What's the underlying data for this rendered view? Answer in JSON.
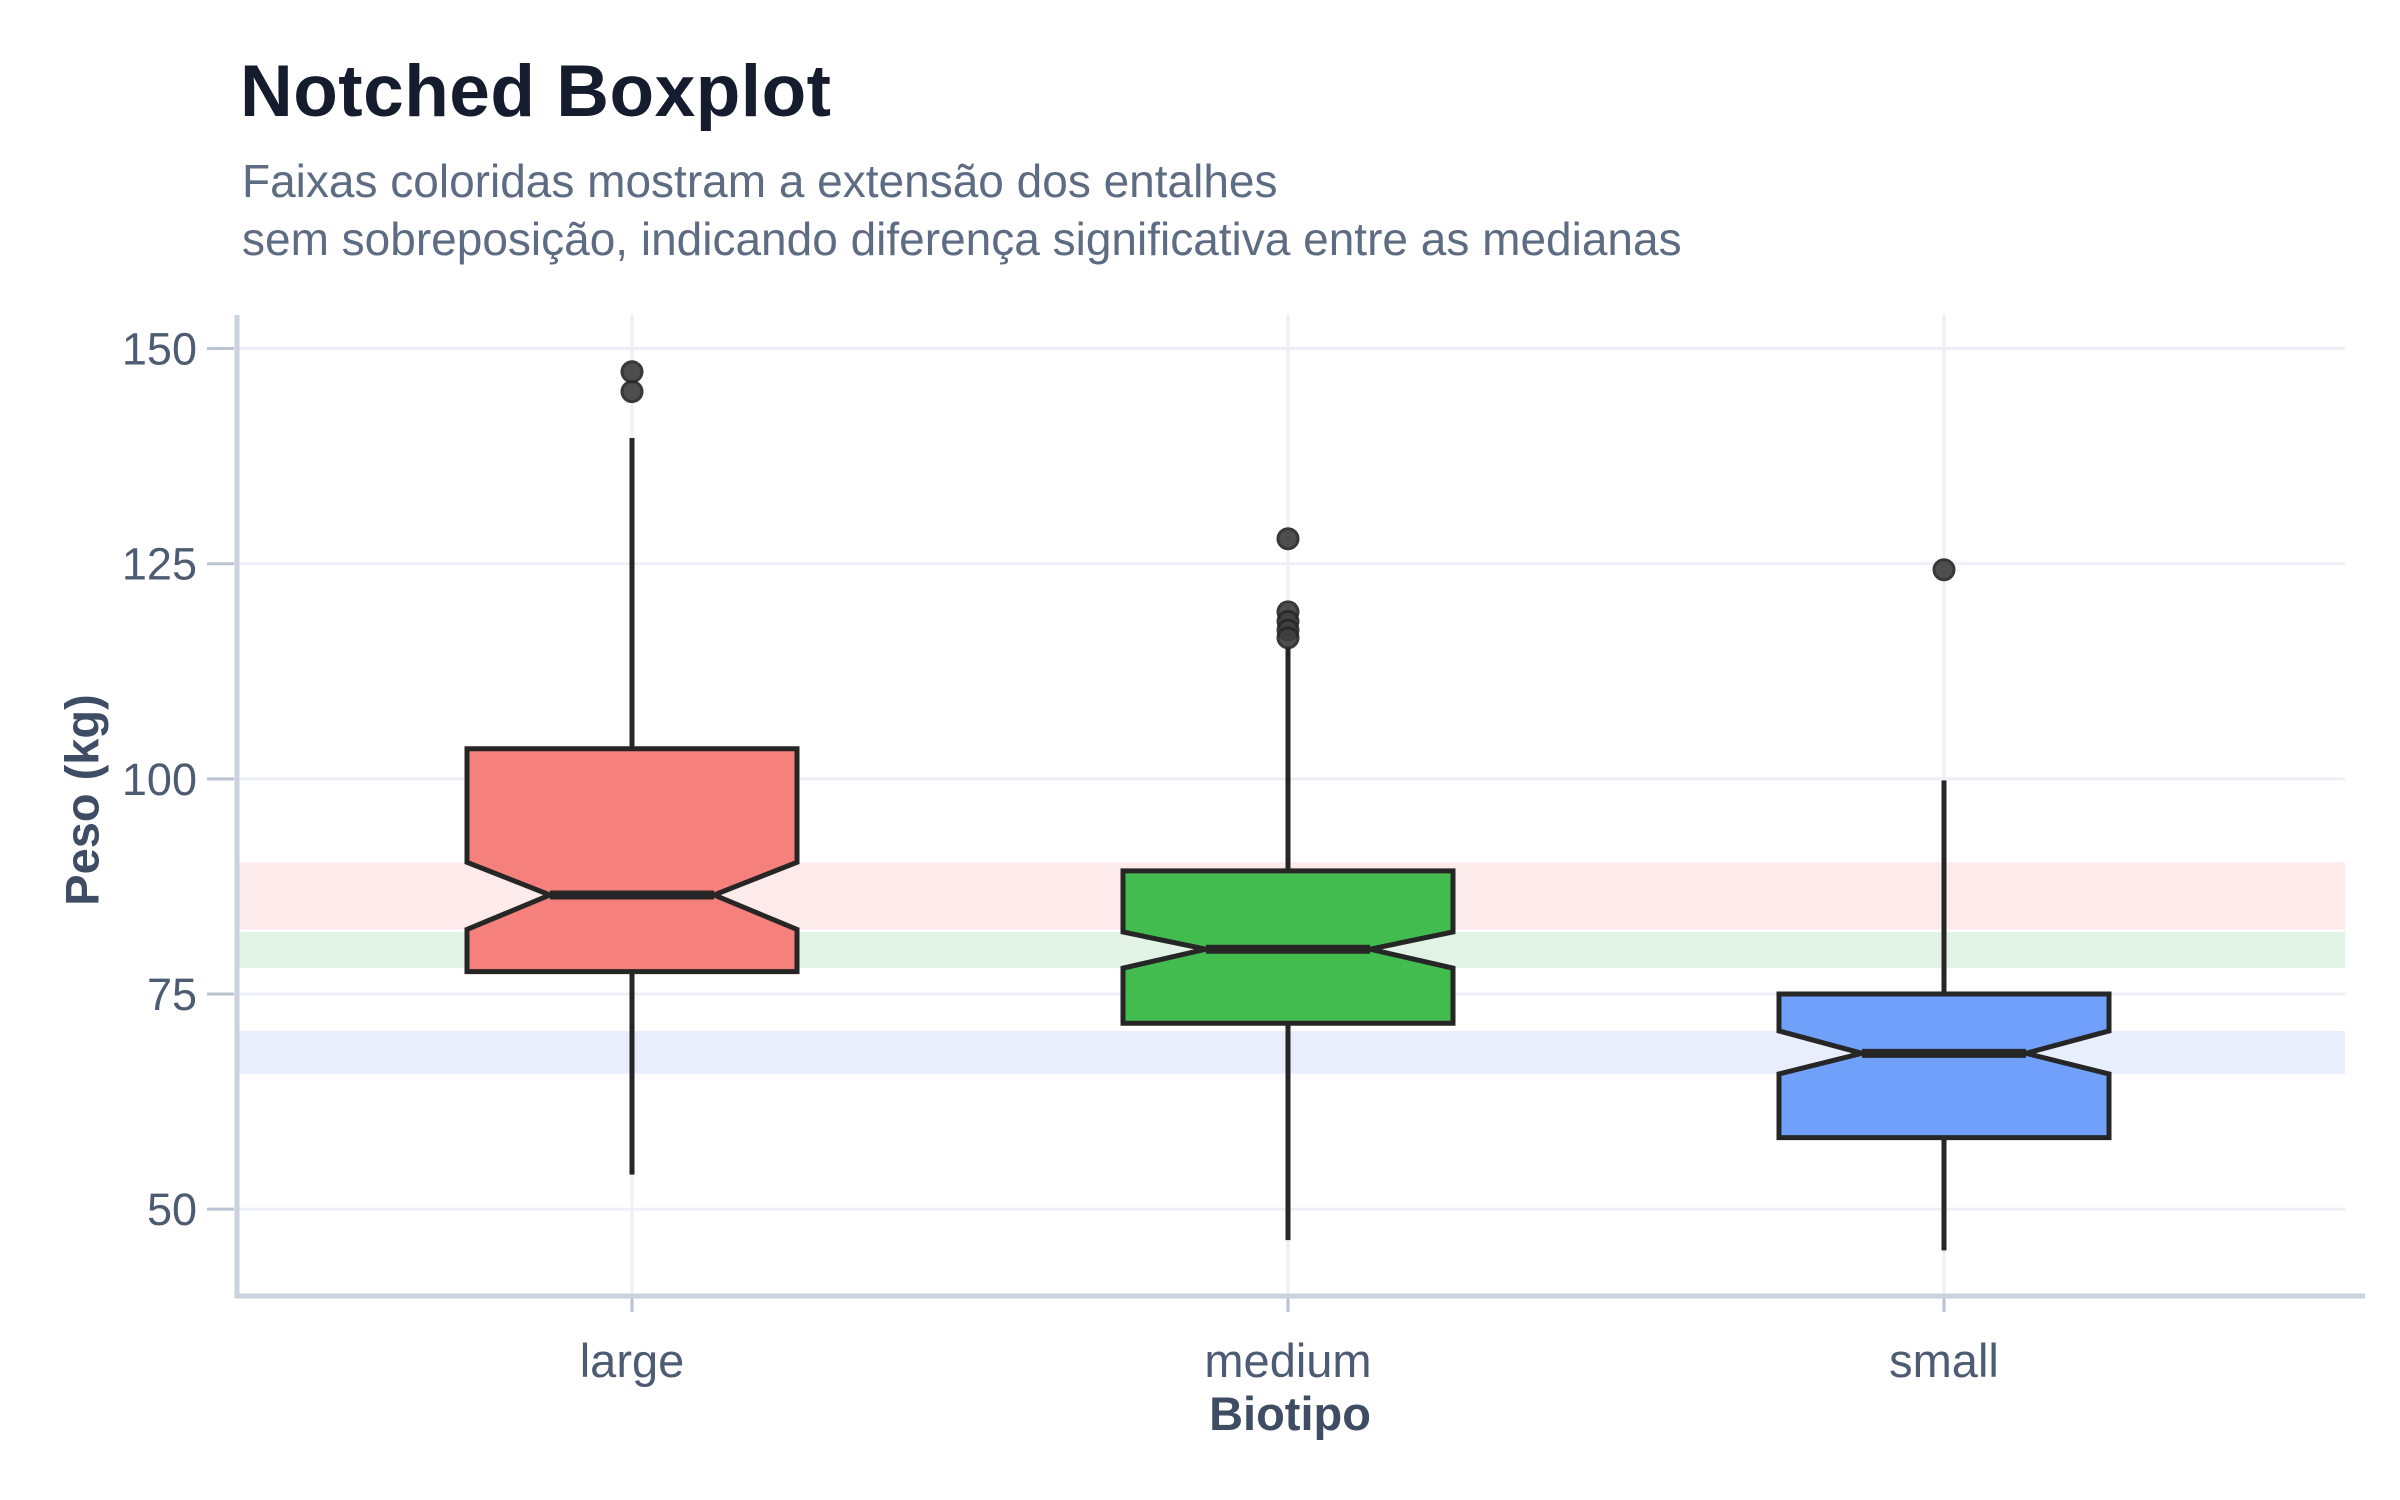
{
  "chart_data": {
    "type": "boxplot",
    "notched": true,
    "title": "Notched Boxplot",
    "subtitle_lines": [
      "Faixas coloridas mostram a extensão dos entalhes",
      "sem sobreposição, indicando diferença significativa entre as medianas"
    ],
    "xlabel": "Biotipo",
    "ylabel": "Peso (kg)",
    "categories": [
      "large",
      "medium",
      "small"
    ],
    "y_ticks": [
      50,
      75,
      100,
      125,
      150
    ],
    "ylim": [
      39.9,
      153.9
    ],
    "legend": "none",
    "grid": "horizontal-and-category-vertical",
    "series": [
      {
        "category": "large",
        "color": "#f5807c",
        "q1": 77.6,
        "median": 86.5,
        "q3": 103.5,
        "notch_low": 82.5,
        "notch_high": 90.3,
        "whisker_low": 54.0,
        "whisker_high": 139.6,
        "outliers": [
          145.0,
          147.3
        ]
      },
      {
        "category": "medium",
        "color": "#43bc4f",
        "q1": 71.6,
        "median": 80.2,
        "q3": 89.3,
        "notch_low": 78.0,
        "notch_high": 82.2,
        "whisker_low": 46.4,
        "whisker_high": 115.3,
        "outliers": [
          127.9,
          119.4,
          118.3,
          117.3,
          116.4
        ]
      },
      {
        "category": "small",
        "color": "#70a0fa",
        "q1": 58.3,
        "median": 68.1,
        "q3": 75.0,
        "notch_low": 65.7,
        "notch_high": 70.7,
        "whisker_low": 45.2,
        "whisker_high": 99.8,
        "outliers": [
          124.3
        ]
      }
    ],
    "notch_bands": [
      {
        "name": "large-notch-band",
        "from": 82.5,
        "to": 90.3,
        "color": "#fcebea"
      },
      {
        "name": "medium-notch-band",
        "from": 78.0,
        "to": 82.2,
        "color": "#e1f3e4"
      },
      {
        "name": "small-notch-band",
        "from": 65.7,
        "to": 70.7,
        "color": "#e8eefb"
      }
    ],
    "style": {
      "box_border_color": "#262626",
      "outlier_color": "#3f3f3f",
      "gridline_color": "#ecf0f6",
      "axis_line_color": "#c9d2de",
      "tick_mark_color": "#b9c3d1",
      "tick_label_color": "#4d5b73",
      "title_color": "#151c2d",
      "subtitle_color": "#5d6c83",
      "axis_title_color": "#3e4d63"
    }
  }
}
